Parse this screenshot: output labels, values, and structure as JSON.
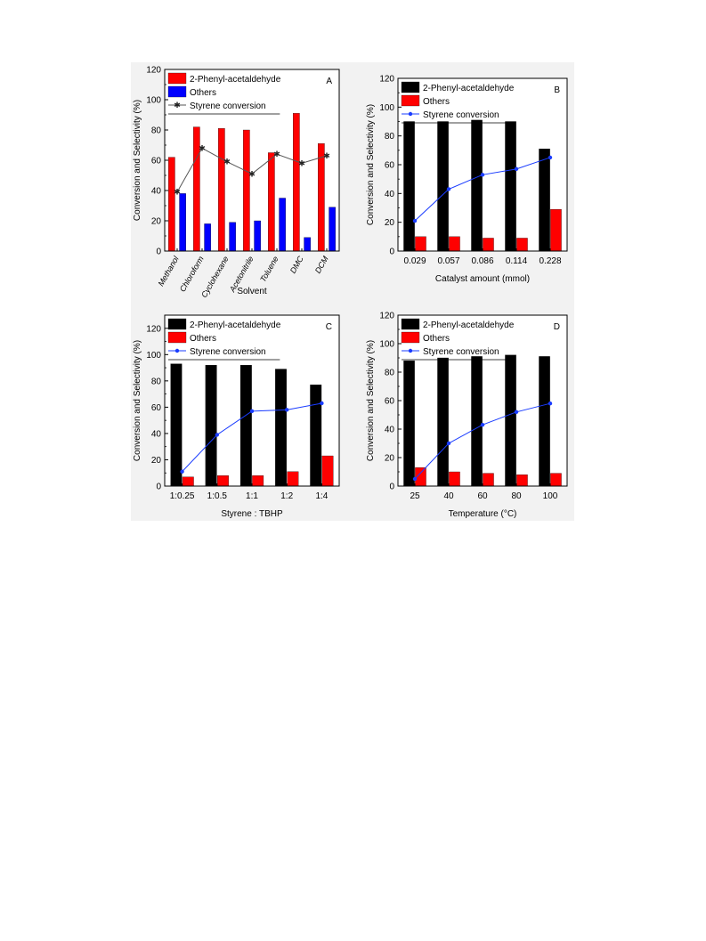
{
  "colors": {
    "black": "#000000",
    "red": "#ff0000",
    "blue": "#0000ff",
    "line_blue": "#1a3cff",
    "line_dark": "#555555",
    "marker_dark": "#222222"
  },
  "chart_data": [
    {
      "type": "bar",
      "panel": "A",
      "xlabel": "Solvent",
      "ylabel": "Conversion and Selectivity (%)",
      "ylim": [
        0,
        120
      ],
      "yticks": [
        "0",
        "20",
        "40",
        "60",
        "80",
        "100",
        "120"
      ],
      "categories": [
        "Methanol",
        "Chloroform",
        "Cyclohexane",
        "Acetonitrile",
        "Toluene",
        "DMC",
        "DCM"
      ],
      "series": [
        {
          "name": "2-Phenyl-acetaldehyde",
          "kind": "bar",
          "color": "#ff0000",
          "values": [
            62,
            82,
            81,
            80,
            65,
            91,
            71
          ]
        },
        {
          "name": "Others",
          "kind": "bar",
          "color": "#0000ff",
          "values": [
            38,
            18,
            19,
            20,
            35,
            9,
            29
          ]
        },
        {
          "name": "Styrene conversion",
          "kind": "line",
          "color": "#555555",
          "marker": "star",
          "values": [
            39,
            68,
            59,
            51,
            64,
            58,
            63
          ]
        }
      ],
      "legend_position": "top-left"
    },
    {
      "type": "bar",
      "panel": "B",
      "xlabel": "Catalyst amount (mmol)",
      "ylabel": "Conversion and Selectivity (%)",
      "ylim": [
        0,
        120
      ],
      "yticks": [
        "0",
        "20",
        "40",
        "60",
        "80",
        "100",
        "120"
      ],
      "categories": [
        "0.029",
        "0.057",
        "0.086",
        "0.114",
        "0.228"
      ],
      "series": [
        {
          "name": "2-Phenyl-acetaldehyde",
          "kind": "bar",
          "color": "#000000",
          "values": [
            90,
            90,
            91,
            90,
            71
          ]
        },
        {
          "name": "Others",
          "kind": "bar",
          "color": "#ff0000",
          "values": [
            10,
            10,
            9,
            9,
            29
          ]
        },
        {
          "name": "Styrene conversion",
          "kind": "line",
          "color": "#1a3cff",
          "marker": "circle",
          "values": [
            21,
            43,
            53,
            57,
            65
          ]
        }
      ],
      "legend_position": "top-left"
    },
    {
      "type": "bar",
      "panel": "C",
      "xlabel": "Styrene : TBHP",
      "ylabel": "Conversion and Selectivity (%)",
      "ylim": [
        0,
        130
      ],
      "yticks": [
        "0",
        "20",
        "40",
        "60",
        "80",
        "100",
        "120"
      ],
      "categories": [
        "1:0.25",
        "1:0.5",
        "1:1",
        "1:2",
        "1:4"
      ],
      "series": [
        {
          "name": "2-Phenyl-acetaldehyde",
          "kind": "bar",
          "color": "#000000",
          "values": [
            93,
            92,
            92,
            89,
            77
          ]
        },
        {
          "name": "Others",
          "kind": "bar",
          "color": "#ff0000",
          "values": [
            7,
            8,
            8,
            11,
            23
          ]
        },
        {
          "name": "Styrene conversion",
          "kind": "line",
          "color": "#1a3cff",
          "marker": "circle",
          "values": [
            11,
            39,
            57,
            58,
            63
          ]
        }
      ],
      "legend_position": "top-left"
    },
    {
      "type": "bar",
      "panel": "D",
      "xlabel": "Temperature (°C)",
      "ylabel": "Conversion and Selectivity (%)",
      "ylim": [
        0,
        120
      ],
      "yticks": [
        "0",
        "20",
        "40",
        "60",
        "80",
        "100",
        "120"
      ],
      "categories": [
        "25",
        "40",
        "60",
        "80",
        "100"
      ],
      "series": [
        {
          "name": "2-Phenyl-acetaldehyde",
          "kind": "bar",
          "color": "#000000",
          "values": [
            88,
            90,
            91,
            92,
            91
          ]
        },
        {
          "name": "Others",
          "kind": "bar",
          "color": "#ff0000",
          "values": [
            13,
            10,
            9,
            8,
            9
          ]
        },
        {
          "name": "Styrene conversion",
          "kind": "line",
          "color": "#1a3cff",
          "marker": "circle",
          "values": [
            5,
            30,
            43,
            52,
            58
          ]
        }
      ],
      "legend_position": "top-left"
    }
  ]
}
